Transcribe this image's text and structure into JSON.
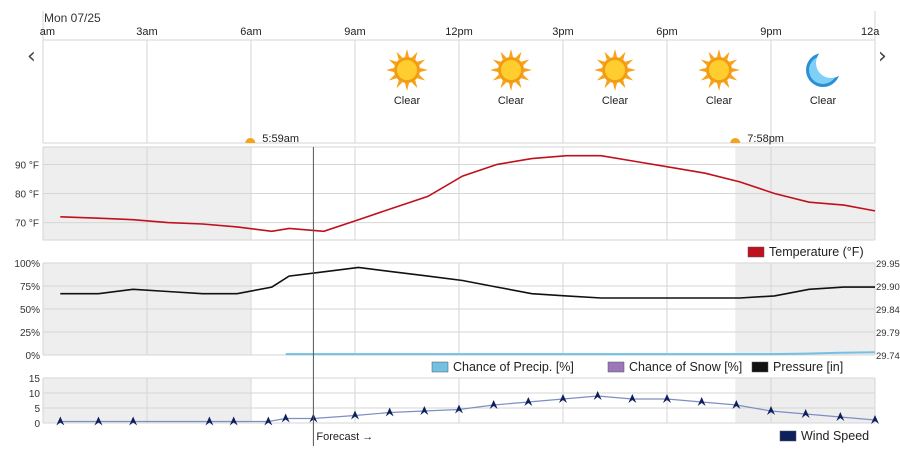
{
  "date_label": "Mon 07/25",
  "forecast_label": "Forecast →",
  "nav": {
    "prev": "‹",
    "next": "›"
  },
  "time_ticks": [
    "am",
    "3am",
    "6am",
    "9am",
    "12pm",
    "3pm",
    "6pm",
    "9pm",
    "12a"
  ],
  "sunrise": {
    "label": "5:59am",
    "hour": 5.98
  },
  "sunset": {
    "label": "7:58pm",
    "hour": 19.97
  },
  "now_hour": 7.8,
  "conditions": [
    {
      "hour": 10.5,
      "icon": "sun-icon",
      "label": "Clear"
    },
    {
      "hour": 13.5,
      "icon": "sun-icon",
      "label": "Clear"
    },
    {
      "hour": 16.5,
      "icon": "sun-icon",
      "label": "Clear"
    },
    {
      "hour": 19.5,
      "icon": "sun-icon",
      "label": "Clear"
    },
    {
      "hour": 22.5,
      "icon": "moon-icon",
      "label": "Clear"
    }
  ],
  "colors": {
    "temperature": "#c0101e",
    "pressure": "#111111",
    "precip": "#74c0e3",
    "snow": "#9b77b8",
    "wind": "#0d1f5c",
    "sun": "#f7a21b",
    "moon": "#2b8fd6",
    "night_shade": "#eeeeee",
    "grid": "#d6d6d6"
  },
  "chart_data": [
    {
      "type": "line",
      "id": "temperature",
      "x_unit": "hour",
      "xlim": [
        0,
        24
      ],
      "ylim": [
        64,
        96
      ],
      "y_ticks": [
        70,
        80,
        90
      ],
      "y_tick_labels": [
        "70 °F",
        "80 °F",
        "90 °F"
      ],
      "series": [
        {
          "name": "Temperature (°F)",
          "color": "#c0101e",
          "x": [
            0.5,
            1.6,
            2.6,
            3.6,
            4.6,
            5.6,
            6.6,
            7.1,
            8.1,
            9.1,
            10.1,
            11.1,
            12.1,
            13.1,
            14.1,
            15.1,
            16.1,
            17.1,
            18.1,
            19.1,
            20.1,
            21.1,
            22.1,
            23.1,
            24.0
          ],
          "y": [
            72,
            71.5,
            71,
            70,
            69.5,
            68.5,
            67,
            68,
            67,
            71,
            75,
            79,
            86,
            90,
            92,
            93,
            93,
            91,
            89,
            87,
            84,
            80,
            77,
            76,
            74
          ]
        }
      ]
    },
    {
      "type": "line",
      "id": "humidity-pressure",
      "x_unit": "hour",
      "xlim": [
        0,
        24
      ],
      "ylim": [
        0,
        100
      ],
      "y_ticks": [
        0,
        25,
        50,
        75,
        100
      ],
      "y_tick_labels": [
        "0%",
        "25%",
        "50%",
        "75%",
        "100%"
      ],
      "y2lim": [
        29.74,
        29.95
      ],
      "y2_tick_labels": [
        "29.74",
        "29.79",
        "29.84",
        "29.90",
        "29.95"
      ],
      "series": [
        {
          "name": "Pressure [in]",
          "axis": "right",
          "color": "#111111",
          "x": [
            0.5,
            1.6,
            2.6,
            3.6,
            4.6,
            5.6,
            6.6,
            7.1,
            8.1,
            9.1,
            10.1,
            11.1,
            12.1,
            13.1,
            14.1,
            15.1,
            16.1,
            17.1,
            18.1,
            19.1,
            20.1,
            21.1,
            22.1,
            23.1,
            24.0
          ],
          "y": [
            29.88,
            29.88,
            29.89,
            29.885,
            29.88,
            29.88,
            29.895,
            29.92,
            29.93,
            29.94,
            29.93,
            29.92,
            29.91,
            29.895,
            29.88,
            29.875,
            29.87,
            29.87,
            29.87,
            29.87,
            29.87,
            29.875,
            29.89,
            29.895,
            29.895
          ]
        },
        {
          "name": "Chance of Precip. [%]",
          "axis": "left",
          "color": "#74c0e3",
          "x": [
            7.0,
            21.0,
            22.0,
            23.0,
            24.0
          ],
          "y": [
            1,
            1,
            1.5,
            2.5,
            3
          ]
        },
        {
          "name": "Chance of Snow [%]",
          "axis": "left",
          "color": "#9b77b8",
          "x": [],
          "y": []
        }
      ]
    },
    {
      "type": "line",
      "id": "wind",
      "x_unit": "hour",
      "xlim": [
        0,
        24
      ],
      "ylim": [
        0,
        15
      ],
      "y_ticks": [
        0,
        5,
        10,
        15
      ],
      "y_tick_labels": [
        "0",
        "5",
        "10",
        "15"
      ],
      "series": [
        {
          "name": "Wind Speed",
          "color": "#0d1f5c",
          "x": [
            0.5,
            1.6,
            2.6,
            4.8,
            5.5,
            6.5,
            7.0,
            7.8,
            9.0,
            10.0,
            11.0,
            12.0,
            13.0,
            14.0,
            15.0,
            16.0,
            17.0,
            18.0,
            19.0,
            20.0,
            21.0,
            22.0,
            23.0,
            24.0
          ],
          "y": [
            0.5,
            0.5,
            0.5,
            0.5,
            0.5,
            0.5,
            1.5,
            1.5,
            2.5,
            3.5,
            4,
            4.5,
            6,
            7,
            8,
            9,
            8,
            8,
            7,
            6,
            4,
            3,
            2,
            1
          ]
        }
      ]
    }
  ]
}
